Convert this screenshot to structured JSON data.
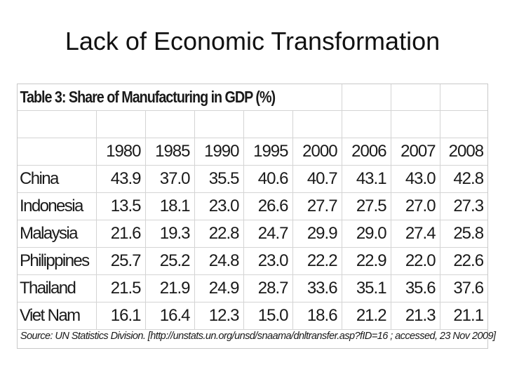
{
  "slide": {
    "title": "Lack of Economic Transformation"
  },
  "chart_data": {
    "type": "table",
    "title": "Table 3: Share of Manufacturing in GDP (%)",
    "columns": [
      "1980",
      "1985",
      "1990",
      "1995",
      "2000",
      "2006",
      "2007",
      "2008"
    ],
    "rows": [
      {
        "country": "China",
        "values": [
          "43.9",
          "37.0",
          "35.5",
          "40.6",
          "40.7",
          "43.1",
          "43.0",
          "42.8"
        ]
      },
      {
        "country": "Indonesia",
        "values": [
          "13.5",
          "18.1",
          "23.0",
          "26.6",
          "27.7",
          "27.5",
          "27.0",
          "27.3"
        ]
      },
      {
        "country": "Malaysia",
        "values": [
          "21.6",
          "19.3",
          "22.8",
          "24.7",
          "29.9",
          "29.0",
          "27.4",
          "25.8"
        ]
      },
      {
        "country": "Philippines",
        "values": [
          "25.7",
          "25.2",
          "24.8",
          "23.0",
          "22.2",
          "22.9",
          "22.0",
          "22.6"
        ]
      },
      {
        "country": "Thailand",
        "values": [
          "21.5",
          "21.9",
          "24.9",
          "28.7",
          "33.6",
          "35.1",
          "35.6",
          "37.6"
        ]
      },
      {
        "country": "Viet Nam",
        "values": [
          "16.1",
          "16.4",
          "12.3",
          "15.0",
          "18.6",
          "21.2",
          "21.3",
          "21.1"
        ]
      }
    ],
    "source": "Source: UN Statistics Division. [http://unstats.un.org/unsd/snaama/dnltransfer.asp?fID=16 ; accessed, 23 Nov 2009]"
  }
}
